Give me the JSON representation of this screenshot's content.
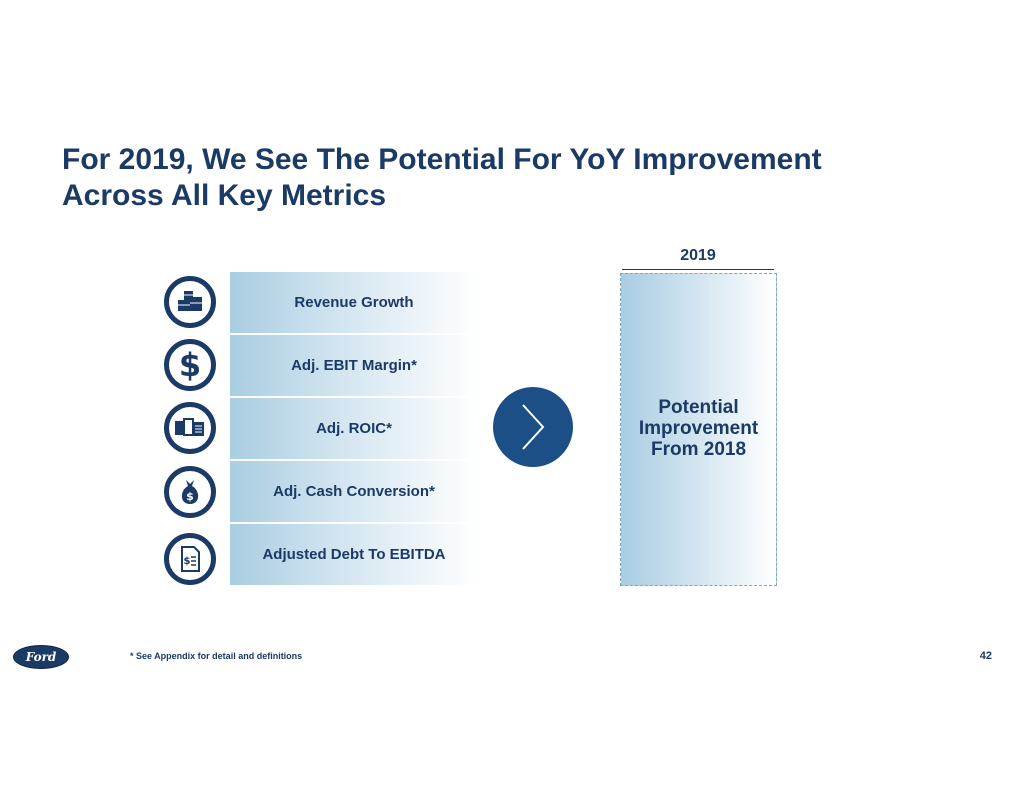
{
  "slide": {
    "title_line1": "For 2019, We See The Potential For YoY Improvement",
    "title_line2": "Across All Key Metrics",
    "metrics": [
      {
        "label": "Revenue Growth",
        "icon": "boxes-icon"
      },
      {
        "label": "Adj. EBIT Margin*",
        "icon": "dollar-sign-icon"
      },
      {
        "label": "Adj. ROIC*",
        "icon": "documents-icon"
      },
      {
        "label": "Adj. Cash Conversion*",
        "icon": "money-bag-icon"
      },
      {
        "label": "Adjusted Debt To EBITDA",
        "icon": "invoice-icon"
      }
    ],
    "year": "2019",
    "outlook_line1": "Potential",
    "outlook_line2": "Improvement",
    "outlook_line3": "From 2018",
    "logo_text": "Ford",
    "footnote": "*  See Appendix for detail and definitions",
    "page_number": "42",
    "colors": {
      "navy": "#1b3a66",
      "arrow": "#1b4f86",
      "gradient_light_blue": "#a9cde2"
    }
  }
}
